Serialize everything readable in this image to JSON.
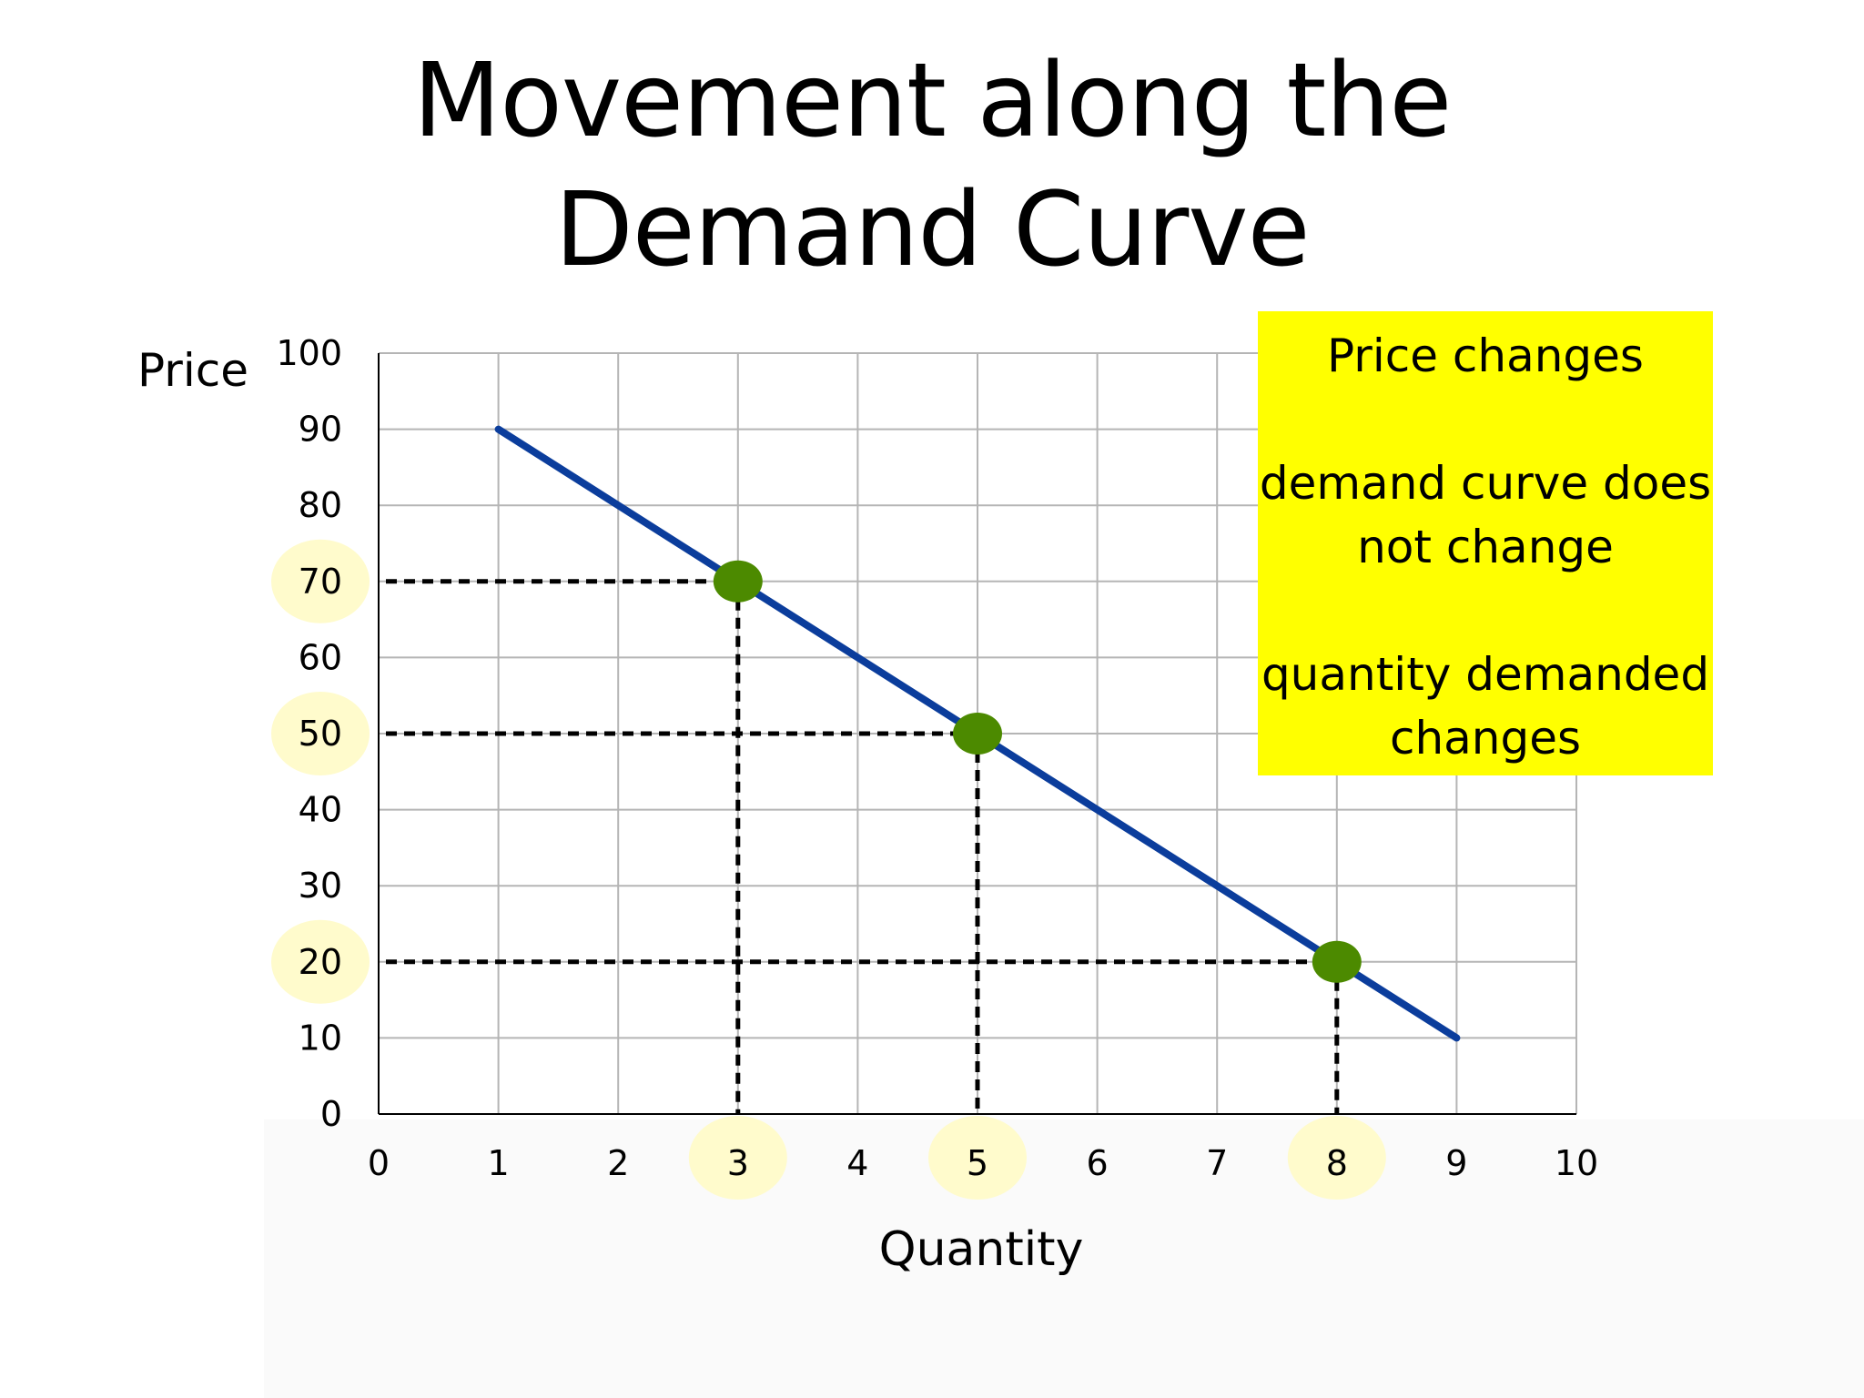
{
  "title_lines": [
    "Movement along the",
    "Demand Curve"
  ],
  "note": {
    "heading": "Price changes",
    "line_1a": "demand curve does",
    "line_1b": "not change",
    "line_2a": "quantity demanded",
    "line_2b": "changes"
  },
  "colors": {
    "curve": "#0b3d9c",
    "point": "#4c8a00",
    "highlight": "#fffbcc",
    "note_background": "#ffff00",
    "grid": "#b5b5b5",
    "axis": "#000000"
  },
  "chart_data": {
    "type": "line",
    "title": "",
    "xlabel": "Quantity",
    "ylabel": "Price",
    "xlim": [
      0,
      10
    ],
    "ylim": [
      0,
      100
    ],
    "x_ticks": [
      "0",
      "1",
      "2",
      "3",
      "4",
      "5",
      "6",
      "7",
      "8",
      "9",
      "10"
    ],
    "y_ticks": [
      "0",
      "10",
      "20",
      "30",
      "40",
      "50",
      "60",
      "70",
      "80",
      "90",
      "100"
    ],
    "grid": true,
    "series": [
      {
        "x": [
          1,
          9
        ],
        "y": [
          90,
          10
        ]
      }
    ],
    "points": [
      {
        "x": 3,
        "y": 70
      },
      {
        "x": 5,
        "y": 50
      },
      {
        "x": 8,
        "y": 20
      }
    ],
    "highlighted_x_ticks": [
      "3",
      "5",
      "8"
    ],
    "highlighted_y_ticks": [
      "70",
      "50",
      "20"
    ]
  }
}
